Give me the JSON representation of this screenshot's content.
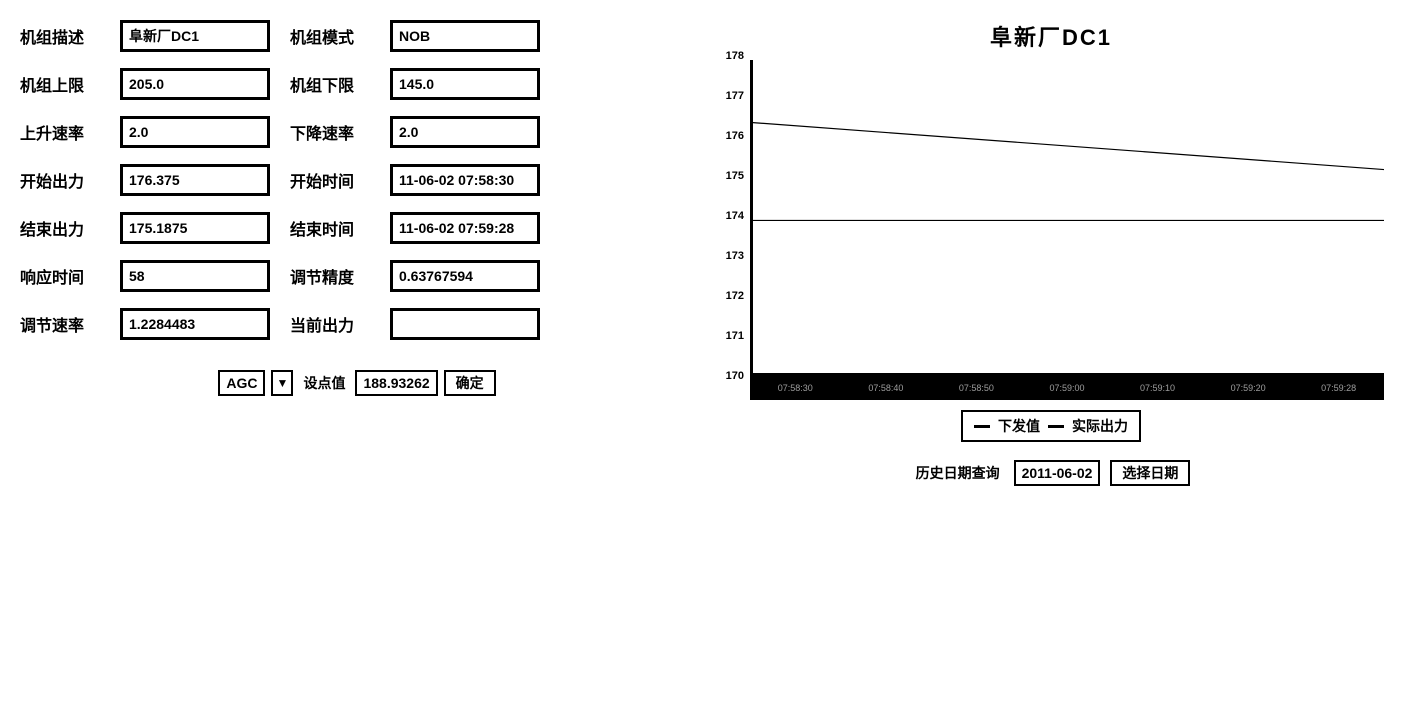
{
  "form": {
    "rows": [
      {
        "label1": "机组描述",
        "value1": "阜新厂DC1",
        "label2": "机组模式",
        "value2": "NOB"
      },
      {
        "label1": "机组上限",
        "value1": "205.0",
        "label2": "机组下限",
        "value2": "145.0"
      },
      {
        "label1": "上升速率",
        "value1": "2.0",
        "label2": "下降速率",
        "value2": "2.0"
      },
      {
        "label1": "开始出力",
        "value1": "176.375",
        "label2": "开始时间",
        "value2": "11-06-02 07:58:30"
      },
      {
        "label1": "结束出力",
        "value1": "175.1875",
        "label2": "结束时间",
        "value2": "11-06-02 07:59:28"
      },
      {
        "label1": "响应时间",
        "value1": "58",
        "label2": "调节精度",
        "value2": "0.63767594"
      },
      {
        "label1": "调节速率",
        "value1": "1.2284483",
        "label2": "当前出力",
        "value2": ""
      }
    ]
  },
  "controls": {
    "mode_select": "AGC",
    "setpoint_label": "设点值",
    "setpoint_value": "188.93262",
    "confirm_btn": "确定"
  },
  "chart": {
    "title": "阜新厂DC1",
    "type": "line",
    "ylim": [
      170,
      178
    ],
    "ytick_step": 1,
    "background_color": "#ffffff",
    "axis_color": "#000000",
    "series": [
      {
        "name": "下发值",
        "color": "#000000",
        "line_width": 2,
        "points": [
          [
            0,
            176.4
          ],
          [
            1,
            175.2
          ]
        ]
      },
      {
        "name": "实际出力",
        "color": "#000000",
        "line_width": 2,
        "points": [
          [
            0,
            173.9
          ],
          [
            1,
            173.9
          ]
        ]
      }
    ],
    "xaxis_labels": [
      "07:58:30",
      "07:58:40",
      "07:58:50",
      "07:59:00",
      "07:59:10",
      "07:59:20",
      "07:59:28"
    ],
    "legend": {
      "item1": "下发值",
      "item2": "实际出力"
    }
  },
  "history": {
    "label": "历史日期查询",
    "date": "2011-06-02",
    "btn": "选择日期"
  }
}
